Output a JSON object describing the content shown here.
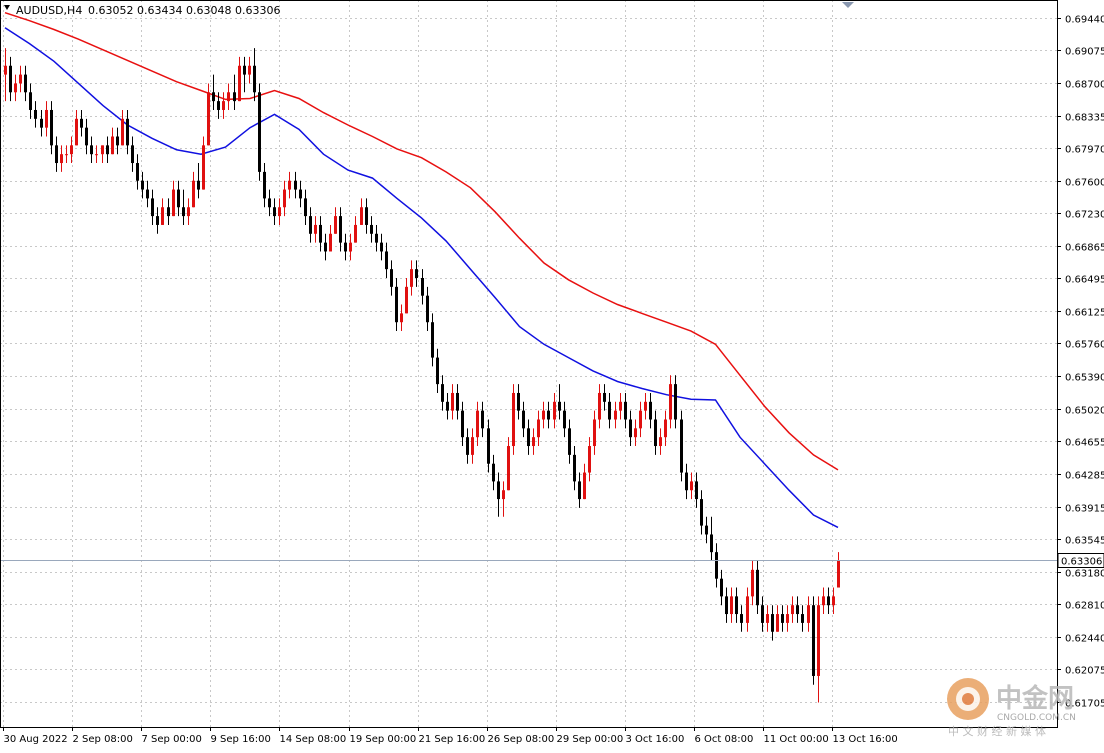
{
  "header": {
    "symbol": "AUDUSD,H4",
    "ohlc": "0.63052 0.63434 0.63048 0.63306"
  },
  "watermark": {
    "name": "中金网",
    "url": "CNGOLD.COM.CN",
    "tagline": "中 文 财 经 新 媒 体"
  },
  "colors": {
    "background": "#ffffff",
    "grid": "#c8c8c8",
    "bull_candle": "#e01010",
    "bear_candle": "#000000",
    "ma_fast": "#1010e0",
    "ma_slow": "#e81010",
    "bid_line": "#9aa8bc"
  },
  "chart_data": {
    "type": "candlestick",
    "symbol": "AUDUSD",
    "timeframe": "H4",
    "current_price": "0.63306",
    "ylim": [
      0.616,
      0.6964
    ],
    "y_ticks": [
      "0.69440",
      "0.69075",
      "0.68700",
      "0.68335",
      "0.67970",
      "0.67600",
      "0.67230",
      "0.66865",
      "0.66495",
      "0.66125",
      "0.65760",
      "0.65390",
      "0.65020",
      "0.64655",
      "0.64285",
      "0.63915",
      "0.63545",
      "0.63180",
      "0.62810",
      "0.62440",
      "0.62075",
      "0.61705"
    ],
    "x_ticks": [
      "30 Aug 2022",
      "2 Sep 08:00",
      "7 Sep 00:00",
      "9 Sep 16:00",
      "14 Sep 08:00",
      "19 Sep 00:00",
      "21 Sep 16:00",
      "26 Sep 08:00",
      "29 Sep 00:00",
      "3 Oct 16:00",
      "6 Oct 08:00",
      "11 Oct 00:00",
      "13 Oct 16:00"
    ],
    "candles": [
      [
        0.688,
        0.691,
        0.685,
        0.689
      ],
      [
        0.689,
        0.69,
        0.685,
        0.686
      ],
      [
        0.686,
        0.688,
        0.685,
        0.687
      ],
      [
        0.687,
        0.689,
        0.686,
        0.688
      ],
      [
        0.688,
        0.689,
        0.685,
        0.686
      ],
      [
        0.686,
        0.687,
        0.683,
        0.684
      ],
      [
        0.684,
        0.685,
        0.682,
        0.683
      ],
      [
        0.683,
        0.684,
        0.681,
        0.682
      ],
      [
        0.682,
        0.685,
        0.681,
        0.684
      ],
      [
        0.684,
        0.685,
        0.679,
        0.68
      ],
      [
        0.68,
        0.681,
        0.677,
        0.678
      ],
      [
        0.678,
        0.68,
        0.677,
        0.679
      ],
      [
        0.679,
        0.68,
        0.678,
        0.679
      ],
      [
        0.679,
        0.681,
        0.678,
        0.68
      ],
      [
        0.68,
        0.684,
        0.68,
        0.683
      ],
      [
        0.683,
        0.684,
        0.681,
        0.682
      ],
      [
        0.682,
        0.683,
        0.679,
        0.68
      ],
      [
        0.68,
        0.681,
        0.678,
        0.679
      ],
      [
        0.679,
        0.68,
        0.678,
        0.679
      ],
      [
        0.679,
        0.68,
        0.678,
        0.68
      ],
      [
        0.68,
        0.681,
        0.678,
        0.679
      ],
      [
        0.679,
        0.682,
        0.679,
        0.681
      ],
      [
        0.681,
        0.682,
        0.679,
        0.68
      ],
      [
        0.68,
        0.684,
        0.68,
        0.683
      ],
      [
        0.683,
        0.684,
        0.679,
        0.68
      ],
      [
        0.68,
        0.681,
        0.677,
        0.678
      ],
      [
        0.678,
        0.679,
        0.675,
        0.676
      ],
      [
        0.676,
        0.677,
        0.674,
        0.675
      ],
      [
        0.675,
        0.676,
        0.673,
        0.674
      ],
      [
        0.674,
        0.675,
        0.671,
        0.672
      ],
      [
        0.672,
        0.673,
        0.67,
        0.671
      ],
      [
        0.671,
        0.674,
        0.671,
        0.673
      ],
      [
        0.673,
        0.674,
        0.671,
        0.672
      ],
      [
        0.672,
        0.676,
        0.672,
        0.675
      ],
      [
        0.675,
        0.676,
        0.672,
        0.673
      ],
      [
        0.673,
        0.675,
        0.671,
        0.672
      ],
      [
        0.672,
        0.674,
        0.671,
        0.673
      ],
      [
        0.673,
        0.677,
        0.673,
        0.676
      ],
      [
        0.676,
        0.678,
        0.674,
        0.675
      ],
      [
        0.675,
        0.681,
        0.675,
        0.68
      ],
      [
        0.68,
        0.687,
        0.68,
        0.686
      ],
      [
        0.686,
        0.688,
        0.684,
        0.685
      ],
      [
        0.685,
        0.686,
        0.683,
        0.684
      ],
      [
        0.684,
        0.686,
        0.683,
        0.685
      ],
      [
        0.685,
        0.687,
        0.684,
        0.686
      ],
      [
        0.686,
        0.688,
        0.684,
        0.685
      ],
      [
        0.685,
        0.69,
        0.685,
        0.689
      ],
      [
        0.689,
        0.69,
        0.686,
        0.688
      ],
      [
        0.688,
        0.69,
        0.687,
        0.689
      ],
      [
        0.689,
        0.691,
        0.685,
        0.686
      ],
      [
        0.686,
        0.687,
        0.676,
        0.677
      ],
      [
        0.677,
        0.678,
        0.673,
        0.674
      ],
      [
        0.674,
        0.675,
        0.672,
        0.673
      ],
      [
        0.673,
        0.674,
        0.671,
        0.672
      ],
      [
        0.672,
        0.674,
        0.671,
        0.673
      ],
      [
        0.673,
        0.676,
        0.672,
        0.675
      ],
      [
        0.675,
        0.677,
        0.674,
        0.676
      ],
      [
        0.676,
        0.677,
        0.674,
        0.675
      ],
      [
        0.675,
        0.676,
        0.673,
        0.674
      ],
      [
        0.674,
        0.675,
        0.671,
        0.672
      ],
      [
        0.672,
        0.673,
        0.669,
        0.67
      ],
      [
        0.67,
        0.672,
        0.669,
        0.671
      ],
      [
        0.671,
        0.672,
        0.668,
        0.669
      ],
      [
        0.669,
        0.67,
        0.667,
        0.668
      ],
      [
        0.668,
        0.671,
        0.668,
        0.67
      ],
      [
        0.67,
        0.673,
        0.67,
        0.672
      ],
      [
        0.672,
        0.673,
        0.668,
        0.669
      ],
      [
        0.669,
        0.67,
        0.667,
        0.668
      ],
      [
        0.668,
        0.67,
        0.667,
        0.669
      ],
      [
        0.669,
        0.672,
        0.669,
        0.671
      ],
      [
        0.671,
        0.674,
        0.671,
        0.673
      ],
      [
        0.673,
        0.674,
        0.67,
        0.671
      ],
      [
        0.671,
        0.672,
        0.669,
        0.67
      ],
      [
        0.67,
        0.671,
        0.668,
        0.669
      ],
      [
        0.669,
        0.67,
        0.667,
        0.668
      ],
      [
        0.668,
        0.669,
        0.665,
        0.666
      ],
      [
        0.666,
        0.667,
        0.663,
        0.664
      ],
      [
        0.664,
        0.665,
        0.659,
        0.66
      ],
      [
        0.66,
        0.662,
        0.659,
        0.661
      ],
      [
        0.661,
        0.665,
        0.661,
        0.664
      ],
      [
        0.664,
        0.667,
        0.663,
        0.666
      ],
      [
        0.666,
        0.667,
        0.664,
        0.665
      ],
      [
        0.665,
        0.666,
        0.662,
        0.663
      ],
      [
        0.663,
        0.664,
        0.659,
        0.66
      ],
      [
        0.66,
        0.661,
        0.655,
        0.656
      ],
      [
        0.656,
        0.657,
        0.652,
        0.653
      ],
      [
        0.653,
        0.654,
        0.65,
        0.651
      ],
      [
        0.651,
        0.652,
        0.649,
        0.65
      ],
      [
        0.65,
        0.653,
        0.649,
        0.652
      ],
      [
        0.652,
        0.653,
        0.649,
        0.65
      ],
      [
        0.65,
        0.651,
        0.646,
        0.647
      ],
      [
        0.647,
        0.648,
        0.644,
        0.645
      ],
      [
        0.645,
        0.648,
        0.644,
        0.647
      ],
      [
        0.647,
        0.651,
        0.646,
        0.65
      ],
      [
        0.65,
        0.651,
        0.647,
        0.648
      ],
      [
        0.648,
        0.649,
        0.643,
        0.644
      ],
      [
        0.644,
        0.645,
        0.641,
        0.642
      ],
      [
        0.642,
        0.643,
        0.638,
        0.64
      ],
      [
        0.64,
        0.642,
        0.638,
        0.641
      ],
      [
        0.641,
        0.647,
        0.641,
        0.646
      ],
      [
        0.646,
        0.653,
        0.645,
        0.652
      ],
      [
        0.652,
        0.653,
        0.649,
        0.65
      ],
      [
        0.65,
        0.651,
        0.647,
        0.648
      ],
      [
        0.648,
        0.649,
        0.645,
        0.646
      ],
      [
        0.646,
        0.648,
        0.645,
        0.647
      ],
      [
        0.647,
        0.65,
        0.646,
        0.649
      ],
      [
        0.649,
        0.651,
        0.648,
        0.65
      ],
      [
        0.65,
        0.651,
        0.648,
        0.649
      ],
      [
        0.649,
        0.652,
        0.648,
        0.651
      ],
      [
        0.651,
        0.653,
        0.649,
        0.65
      ],
      [
        0.65,
        0.651,
        0.647,
        0.648
      ],
      [
        0.648,
        0.649,
        0.644,
        0.645
      ],
      [
        0.645,
        0.646,
        0.641,
        0.642
      ],
      [
        0.642,
        0.643,
        0.639,
        0.64
      ],
      [
        0.64,
        0.644,
        0.64,
        0.643
      ],
      [
        0.643,
        0.647,
        0.642,
        0.646
      ],
      [
        0.646,
        0.65,
        0.645,
        0.649
      ],
      [
        0.649,
        0.653,
        0.648,
        0.652
      ],
      [
        0.652,
        0.653,
        0.65,
        0.651
      ],
      [
        0.651,
        0.652,
        0.648,
        0.649
      ],
      [
        0.649,
        0.651,
        0.648,
        0.65
      ],
      [
        0.65,
        0.652,
        0.649,
        0.651
      ],
      [
        0.651,
        0.652,
        0.648,
        0.649
      ],
      [
        0.649,
        0.65,
        0.646,
        0.647
      ],
      [
        0.647,
        0.649,
        0.646,
        0.648
      ],
      [
        0.648,
        0.651,
        0.647,
        0.65
      ],
      [
        0.65,
        0.652,
        0.649,
        0.651
      ],
      [
        0.651,
        0.652,
        0.648,
        0.649
      ],
      [
        0.649,
        0.65,
        0.645,
        0.646
      ],
      [
        0.646,
        0.648,
        0.645,
        0.647
      ],
      [
        0.647,
        0.65,
        0.646,
        0.649
      ],
      [
        0.649,
        0.654,
        0.648,
        0.653
      ],
      [
        0.653,
        0.654,
        0.648,
        0.649
      ],
      [
        0.649,
        0.65,
        0.642,
        0.643
      ],
      [
        0.643,
        0.644,
        0.64,
        0.641
      ],
      [
        0.641,
        0.643,
        0.64,
        0.642
      ],
      [
        0.642,
        0.643,
        0.639,
        0.64
      ],
      [
        0.64,
        0.641,
        0.636,
        0.637
      ],
      [
        0.637,
        0.638,
        0.635,
        0.636
      ],
      [
        0.636,
        0.638,
        0.633,
        0.634
      ],
      [
        0.634,
        0.635,
        0.63,
        0.631
      ],
      [
        0.631,
        0.632,
        0.628,
        0.629
      ],
      [
        0.629,
        0.63,
        0.626,
        0.627
      ],
      [
        0.627,
        0.63,
        0.626,
        0.629
      ],
      [
        0.629,
        0.63,
        0.626,
        0.627
      ],
      [
        0.627,
        0.628,
        0.625,
        0.626
      ],
      [
        0.626,
        0.63,
        0.625,
        0.629
      ],
      [
        0.629,
        0.633,
        0.628,
        0.632
      ],
      [
        0.632,
        0.633,
        0.627,
        0.628
      ],
      [
        0.628,
        0.629,
        0.625,
        0.626
      ],
      [
        0.626,
        0.628,
        0.625,
        0.627
      ],
      [
        0.627,
        0.628,
        0.624,
        0.625
      ],
      [
        0.625,
        0.628,
        0.625,
        0.627
      ],
      [
        0.627,
        0.628,
        0.625,
        0.626
      ],
      [
        0.626,
        0.628,
        0.625,
        0.627
      ],
      [
        0.627,
        0.629,
        0.626,
        0.628
      ],
      [
        0.628,
        0.629,
        0.626,
        0.627
      ],
      [
        0.627,
        0.628,
        0.625,
        0.626
      ],
      [
        0.626,
        0.629,
        0.625,
        0.628
      ],
      [
        0.628,
        0.629,
        0.619,
        0.62
      ],
      [
        0.62,
        0.629,
        0.617,
        0.628
      ],
      [
        0.628,
        0.63,
        0.627,
        0.629
      ],
      [
        0.629,
        0.63,
        0.627,
        0.628
      ],
      [
        0.628,
        0.63,
        0.627,
        0.629
      ],
      [
        0.63,
        0.634,
        0.63,
        0.633
      ]
    ],
    "series": [
      {
        "values": [
          0.6933,
          0.6915,
          0.6895,
          0.687,
          0.6845,
          0.6823,
          0.6808,
          0.6795,
          0.679,
          0.6798,
          0.682,
          0.6835,
          0.6818,
          0.679,
          0.6772,
          0.6763,
          0.674,
          0.6718,
          0.6692,
          0.666,
          0.6628,
          0.6595,
          0.6575,
          0.656,
          0.6545,
          0.6533,
          0.6525,
          0.6518,
          0.6513,
          0.6512,
          0.647,
          0.644,
          0.641,
          0.6382,
          0.6368
        ]
      },
      {
        "values": [
          0.695,
          0.6941,
          0.6931,
          0.692,
          0.6908,
          0.6896,
          0.6884,
          0.6872,
          0.6862,
          0.6852,
          0.6853,
          0.6862,
          0.6853,
          0.6837,
          0.6823,
          0.681,
          0.6796,
          0.6786,
          0.677,
          0.6752,
          0.6725,
          0.6695,
          0.6667,
          0.6648,
          0.6633,
          0.662,
          0.661,
          0.66,
          0.659,
          0.6575,
          0.654,
          0.6505,
          0.6475,
          0.645,
          0.6433
        ]
      }
    ]
  }
}
